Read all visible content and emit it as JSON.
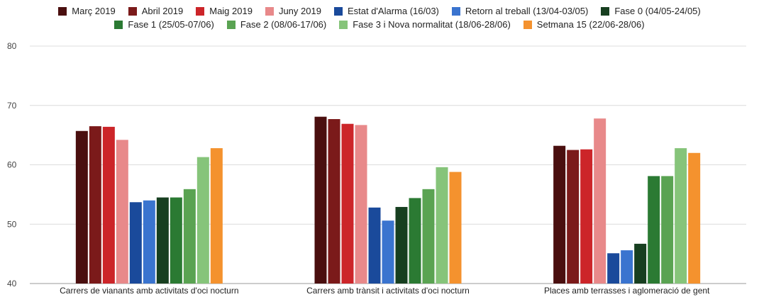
{
  "chart_data": {
    "type": "bar",
    "categories": [
      "Carrers de vianants amb activitats d'oci nocturn",
      "Carrers amb trànsit i activitats d'oci nocturn",
      "Places amb terrasses i aglomeració de gent"
    ],
    "series": [
      {
        "name": "Març 2019",
        "color": "#4a0f0f",
        "values": [
          65.7,
          68.1,
          63.2
        ]
      },
      {
        "name": "Abril 2019",
        "color": "#7b1a1a",
        "values": [
          66.5,
          67.7,
          62.5
        ]
      },
      {
        "name": "Maig 2019",
        "color": "#cc2529",
        "values": [
          66.4,
          66.9,
          62.6
        ]
      },
      {
        "name": "Juny 2019",
        "color": "#e8898a",
        "values": [
          64.2,
          66.7,
          67.8
        ]
      },
      {
        "name": "Estat d'Alarma (16/03)",
        "color": "#1a4a9b",
        "values": [
          53.7,
          52.8,
          45.1
        ]
      },
      {
        "name": "Retorn al treball (13/04-03/05)",
        "color": "#3a74cf",
        "values": [
          54.0,
          50.6,
          45.6
        ]
      },
      {
        "name": "Fase 0 (04/05-24/05)",
        "color": "#173f20",
        "values": [
          54.5,
          52.9,
          46.7
        ]
      },
      {
        "name": "Fase 1 (25/05-07/06)",
        "color": "#2b7a33",
        "values": [
          54.5,
          54.4,
          58.1
        ]
      },
      {
        "name": "Fase 2 (08/06-17/06)",
        "color": "#5aa352",
        "values": [
          55.9,
          55.9,
          58.1
        ]
      },
      {
        "name": "Fase 3 i Nova normalitat (18/06-28/06)",
        "color": "#86c47a",
        "values": [
          61.3,
          59.6,
          62.8
        ]
      },
      {
        "name": "Setmana 15 (22/06-28/06)",
        "color": "#f4922e",
        "values": [
          62.8,
          58.8,
          62.0
        ]
      }
    ],
    "ylim": [
      40,
      80
    ],
    "yticks": [
      40,
      50,
      60,
      70,
      80
    ],
    "grid": true,
    "legend_position": "top"
  }
}
